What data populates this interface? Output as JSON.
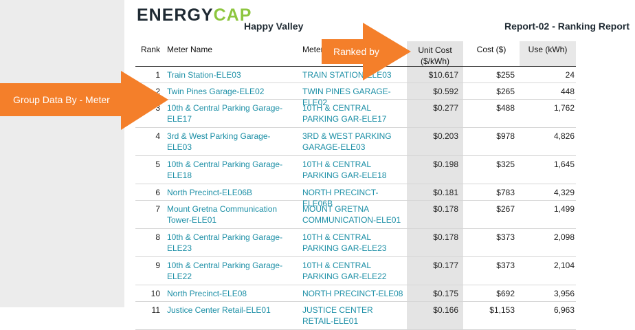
{
  "header": {
    "logo_main": "ENERGY",
    "logo_accent": "CAP",
    "site_name": "Happy Valley",
    "report_title": "Report-02 - Ranking Report"
  },
  "table": {
    "columns": {
      "rank": "Rank",
      "meter_name": "Meter Name",
      "meter_code": "Meter",
      "unit_cost_line1": "Unit Cost",
      "unit_cost_line2": "($/kWh)",
      "cost": "Cost ($)",
      "use": "Use (kWh)"
    },
    "rows": [
      {
        "rank": "1",
        "name": "Train Station-ELE03",
        "code": "TRAIN STATION-ELE03",
        "unit_cost": "$10.617",
        "cost": "$255",
        "use": "24"
      },
      {
        "rank": "2",
        "name": "Twin Pines Garage-ELE02",
        "code": "TWIN PINES GARAGE-ELE02",
        "unit_cost": "$0.592",
        "cost": "$265",
        "use": "448"
      },
      {
        "rank": "3",
        "name": "10th & Central Parking Garage-ELE17",
        "code": "10TH & CENTRAL PARKING GAR-ELE17",
        "unit_cost": "$0.277",
        "cost": "$488",
        "use": "1,762"
      },
      {
        "rank": "4",
        "name": "3rd & West Parking Garage-ELE03",
        "code": "3RD & WEST PARKING GARAGE-ELE03",
        "unit_cost": "$0.203",
        "cost": "$978",
        "use": "4,826"
      },
      {
        "rank": "5",
        "name": "10th & Central Parking Garage-ELE18",
        "code": "10TH & CENTRAL PARKING GAR-ELE18",
        "unit_cost": "$0.198",
        "cost": "$325",
        "use": "1,645"
      },
      {
        "rank": "6",
        "name": "North Precinct-ELE06B",
        "code": "NORTH PRECINCT-ELE06B",
        "unit_cost": "$0.181",
        "cost": "$783",
        "use": "4,329"
      },
      {
        "rank": "7",
        "name": "Mount Gretna Communication Tower-ELE01",
        "code": "MOUNT GRETNA COMMUNICATION-ELE01",
        "unit_cost": "$0.178",
        "cost": "$267",
        "use": "1,499"
      },
      {
        "rank": "8",
        "name": "10th & Central Parking Garage-ELE23",
        "code": "10TH & CENTRAL PARKING GAR-ELE23",
        "unit_cost": "$0.178",
        "cost": "$373",
        "use": "2,098"
      },
      {
        "rank": "9",
        "name": "10th & Central Parking Garage-ELE22",
        "code": "10TH & CENTRAL PARKING GAR-ELE22",
        "unit_cost": "$0.177",
        "cost": "$373",
        "use": "2,104"
      },
      {
        "rank": "10",
        "name": "North Precinct-ELE08",
        "code": "NORTH PRECINCT-ELE08",
        "unit_cost": "$0.175",
        "cost": "$692",
        "use": "3,956"
      },
      {
        "rank": "11",
        "name": "Justice Center Retail-ELE01",
        "code": "JUSTICE CENTER RETAIL-ELE01",
        "unit_cost": "$0.166",
        "cost": "$1,153",
        "use": "6,963"
      }
    ]
  },
  "annotations": {
    "ranked_by": "Ranked by",
    "group_by": "Group Data By - Meter",
    "arrow_color": "#f47f2a"
  }
}
